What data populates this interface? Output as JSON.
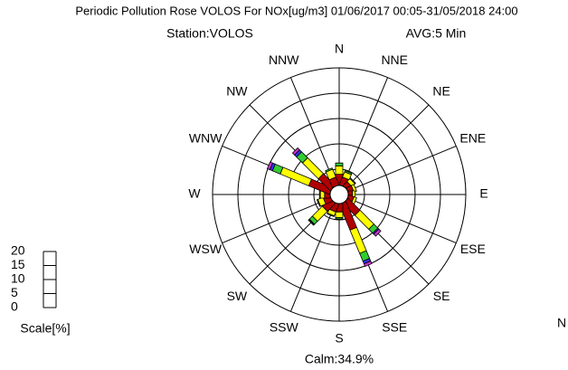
{
  "chart_data": {
    "type": "rose",
    "title": "Periodic Pollution Rose VOLOS For NOx[ug/m3] 01/06/2017 00:05-31/05/2018 24:00",
    "station": "Station:VOLOS",
    "average": "AVG:5 Min",
    "calm": "Calm:34.9%",
    "scale_label": "Scale[%]",
    "legend_title_partial": "N",
    "directions": [
      "N",
      "NNE",
      "NE",
      "ENE",
      "E",
      "ESE",
      "SE",
      "SSE",
      "S",
      "SSW",
      "SW",
      "WSW",
      "W",
      "WNW",
      "NW",
      "NNW"
    ],
    "rlim": [
      0,
      20
    ],
    "scale_ticks": [
      0,
      5,
      10,
      15,
      20
    ],
    "series": [
      {
        "color": "#b00000",
        "values": [
          4,
          3,
          2,
          2,
          1.5,
          2,
          6,
          10,
          3,
          3,
          4,
          2.5,
          2,
          8,
          6,
          3
        ]
      },
      {
        "color": "#ffff00",
        "values": [
          3,
          2,
          1.5,
          1,
          1,
          1,
          7,
          9,
          2,
          1.5,
          5,
          2,
          1.5,
          11,
          8,
          3
        ]
      },
      {
        "color": "#33cc33",
        "values": [
          1,
          0.5,
          0.3,
          0,
          0,
          0,
          2,
          3,
          0.5,
          0.3,
          1.5,
          0.3,
          0.3,
          3,
          3,
          0.5
        ]
      },
      {
        "color": "#3333ff",
        "values": [
          0,
          0,
          0,
          0,
          0,
          0,
          0.5,
          1,
          0,
          0,
          0.2,
          0,
          0,
          1,
          1,
          0
        ]
      },
      {
        "color": "#cc33cc",
        "values": [
          0,
          0,
          0,
          0,
          0,
          0,
          1,
          1,
          0,
          0,
          0.3,
          0,
          0,
          1,
          1,
          0
        ]
      }
    ]
  }
}
